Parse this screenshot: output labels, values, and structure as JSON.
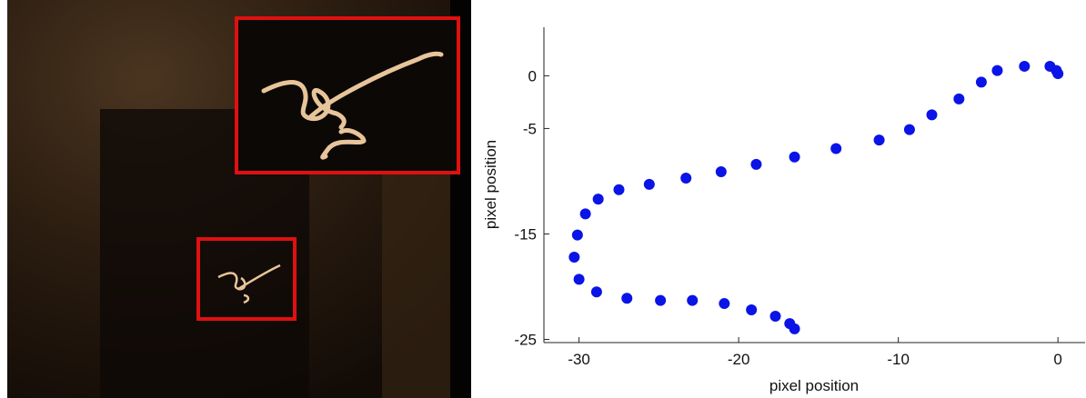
{
  "chart_data": {
    "type": "scatter",
    "xlabel": "pixel position",
    "ylabel": "pixel position",
    "x": [
      0,
      -0.1,
      -0.5,
      -2.1,
      -3.8,
      -4.8,
      -6.2,
      -7.9,
      -9.3,
      -11.2,
      -13.9,
      -16.5,
      -18.9,
      -21.1,
      -23.3,
      -25.6,
      -27.5,
      -28.8,
      -29.6,
      -30.1,
      -30.3,
      -30.0,
      -28.9,
      -27.0,
      -24.9,
      -22.9,
      -20.9,
      -19.2,
      -17.7,
      -16.8,
      -16.5
    ],
    "values": [
      0.2,
      0.5,
      0.9,
      0.9,
      0.5,
      -0.6,
      -2.2,
      -3.7,
      -5.1,
      -6.1,
      -6.9,
      -7.7,
      -8.4,
      -9.1,
      -9.7,
      -10.3,
      -10.8,
      -11.7,
      -13.1,
      -15.1,
      -17.2,
      -19.3,
      -20.5,
      -21.1,
      -21.3,
      -21.3,
      -21.6,
      -22.2,
      -22.8,
      -23.5,
      -24.0
    ],
    "color": "#0a14e6",
    "xlim": [
      -32.2,
      1.7
    ],
    "ylim": [
      -25.3,
      4.6
    ],
    "xticks": [
      -30,
      -20,
      -10,
      0
    ],
    "yticks": [
      0,
      -5,
      -15,
      -25
    ]
  }
}
